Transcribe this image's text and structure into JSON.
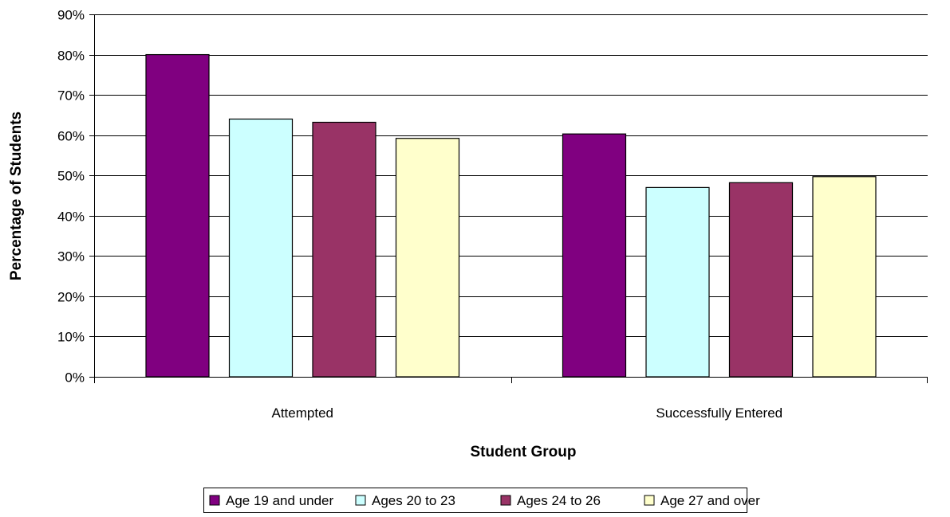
{
  "chart_data": {
    "type": "bar",
    "title": "",
    "xlabel": "Student Group",
    "ylabel": "Percentage of Students",
    "categories": [
      "Attempted",
      "Successfully Entered"
    ],
    "series": [
      {
        "name": "Age 19 and under",
        "values": [
          80,
          60.3
        ],
        "color": "#800080"
      },
      {
        "name": "Ages 20 to 23",
        "values": [
          64,
          47
        ],
        "color": "#ccffff"
      },
      {
        "name": "Ages 24 to 26",
        "values": [
          63.2,
          48.2
        ],
        "color": "#993366"
      },
      {
        "name": "Age 27 and over",
        "values": [
          59.2,
          49.7
        ],
        "color": "#ffffcc"
      }
    ],
    "ylim": [
      0,
      90
    ],
    "yticks": [
      0,
      10,
      20,
      30,
      40,
      50,
      60,
      70,
      80,
      90
    ],
    "ytick_labels": [
      "0%",
      "10%",
      "20%",
      "30%",
      "40%",
      "50%",
      "60%",
      "70%",
      "80%",
      "90%"
    ],
    "grid": true,
    "legend_position": "bottom"
  }
}
